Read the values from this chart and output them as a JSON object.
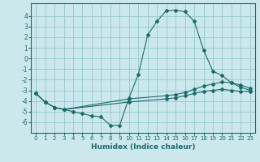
{
  "xlabel": "Humidex (Indice chaleur)",
  "bg_color": "#cce8ec",
  "grid_color": "#99ccd4",
  "line_color": "#1a6b6b",
  "xlim": [
    -0.5,
    23.5
  ],
  "ylim": [
    -7.0,
    5.2
  ],
  "yticks": [
    -6,
    -5,
    -4,
    -3,
    -2,
    -1,
    0,
    1,
    2,
    3,
    4
  ],
  "xticks": [
    0,
    1,
    2,
    3,
    4,
    5,
    6,
    7,
    8,
    9,
    10,
    11,
    12,
    13,
    14,
    15,
    16,
    17,
    18,
    19,
    20,
    21,
    22,
    23
  ],
  "line1_x": [
    0,
    1,
    2,
    3,
    4,
    5,
    6,
    7,
    8,
    9,
    10,
    11,
    12,
    13,
    14,
    15,
    16,
    17,
    18,
    19,
    20,
    21,
    22,
    23
  ],
  "line1_y": [
    -3.3,
    -4.1,
    -4.6,
    -4.8,
    -5.0,
    -5.2,
    -5.4,
    -5.5,
    -6.3,
    -6.3,
    -3.7,
    -1.5,
    2.2,
    3.5,
    4.5,
    4.55,
    4.4,
    3.5,
    0.8,
    -1.2,
    -1.6,
    -2.3,
    -2.7,
    -3.0
  ],
  "line2_x": [
    0,
    1,
    2,
    3,
    10,
    14,
    15,
    16,
    17,
    18,
    19,
    20,
    21,
    22,
    23
  ],
  "line2_y": [
    -3.3,
    -4.1,
    -4.6,
    -4.8,
    -3.8,
    -3.5,
    -3.4,
    -3.2,
    -2.9,
    -2.6,
    -2.4,
    -2.2,
    -2.3,
    -2.5,
    -2.8
  ],
  "line3_x": [
    0,
    1,
    2,
    3,
    10,
    14,
    15,
    16,
    17,
    18,
    19,
    20,
    21,
    22,
    23
  ],
  "line3_y": [
    -3.3,
    -4.1,
    -4.6,
    -4.8,
    -4.1,
    -3.8,
    -3.7,
    -3.5,
    -3.3,
    -3.1,
    -3.0,
    -2.9,
    -3.0,
    -3.1,
    -3.1
  ]
}
